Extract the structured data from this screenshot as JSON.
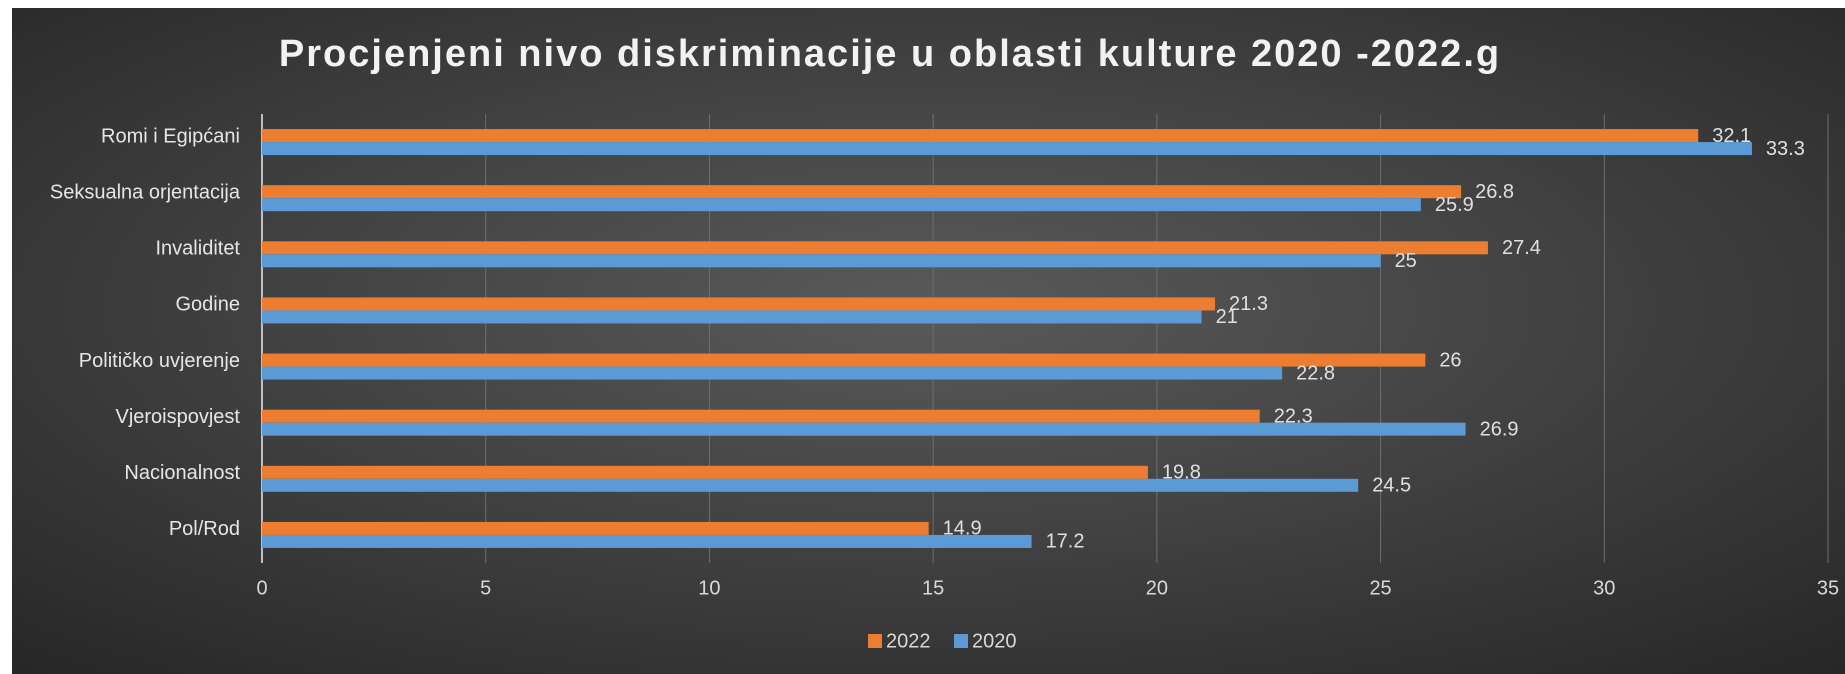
{
  "chart_data": {
    "type": "hbar",
    "title": "Procjenjeni nivo diskriminacije u oblasti kulture 2020 -2022.g",
    "categories": [
      "Romi i Egipćani",
      "Seksualna orjentacija",
      "Invaliditet",
      "Godine",
      "Političko uvjerenje",
      "Vjeroispovjest",
      "Nacionalnost",
      "Pol/Rod"
    ],
    "series": [
      {
        "name": "2022",
        "color": "#ed7d31",
        "values": [
          32.1,
          26.8,
          27.4,
          21.3,
          26,
          22.3,
          19.8,
          14.9
        ]
      },
      {
        "name": "2020",
        "color": "#5b9bd5",
        "values": [
          33.3,
          25.9,
          25,
          21,
          22.8,
          26.9,
          24.5,
          17.2
        ]
      }
    ],
    "xlim": [
      0,
      35
    ],
    "xticks": [
      0,
      5,
      10,
      15,
      20,
      25,
      30,
      35
    ],
    "grid": true,
    "legend": "bottom"
  }
}
